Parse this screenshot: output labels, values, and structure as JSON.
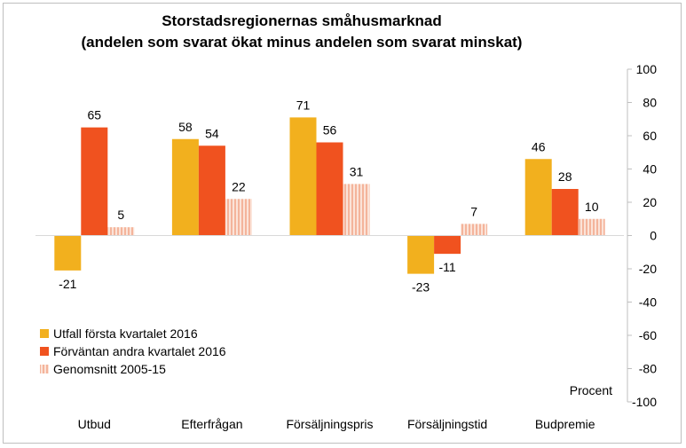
{
  "chart_data": {
    "type": "bar",
    "title_line1": "Storstadsregionernas småhusmarknad",
    "title_line2": "(andelen som svarat ökat minus andelen som svarat minskat)",
    "categories": [
      "Utbud",
      "Efterfrågan",
      "Försäljningspris",
      "Försäljningstid",
      "Budpremie"
    ],
    "series": [
      {
        "name": "Utfall första kvartalet 2016",
        "values": [
          -21,
          58,
          71,
          -23,
          46
        ],
        "color": "#F2B01E"
      },
      {
        "name": "Förväntan andra kvartalet 2016",
        "values": [
          65,
          54,
          56,
          -11,
          28
        ],
        "color": "#F0521F"
      },
      {
        "name": "Genomsnitt 2005-15",
        "values": [
          5,
          22,
          31,
          7,
          10
        ],
        "color": "#F7C7B4",
        "pattern": "hatched"
      }
    ],
    "ylim": [
      -100,
      100
    ],
    "yticks": [
      100,
      80,
      60,
      40,
      20,
      0,
      -20,
      -40,
      -60,
      -80,
      -100
    ],
    "ylabel": "Procent",
    "y_axis_side": "right",
    "legend_position": "bottom-left",
    "grid": false
  }
}
